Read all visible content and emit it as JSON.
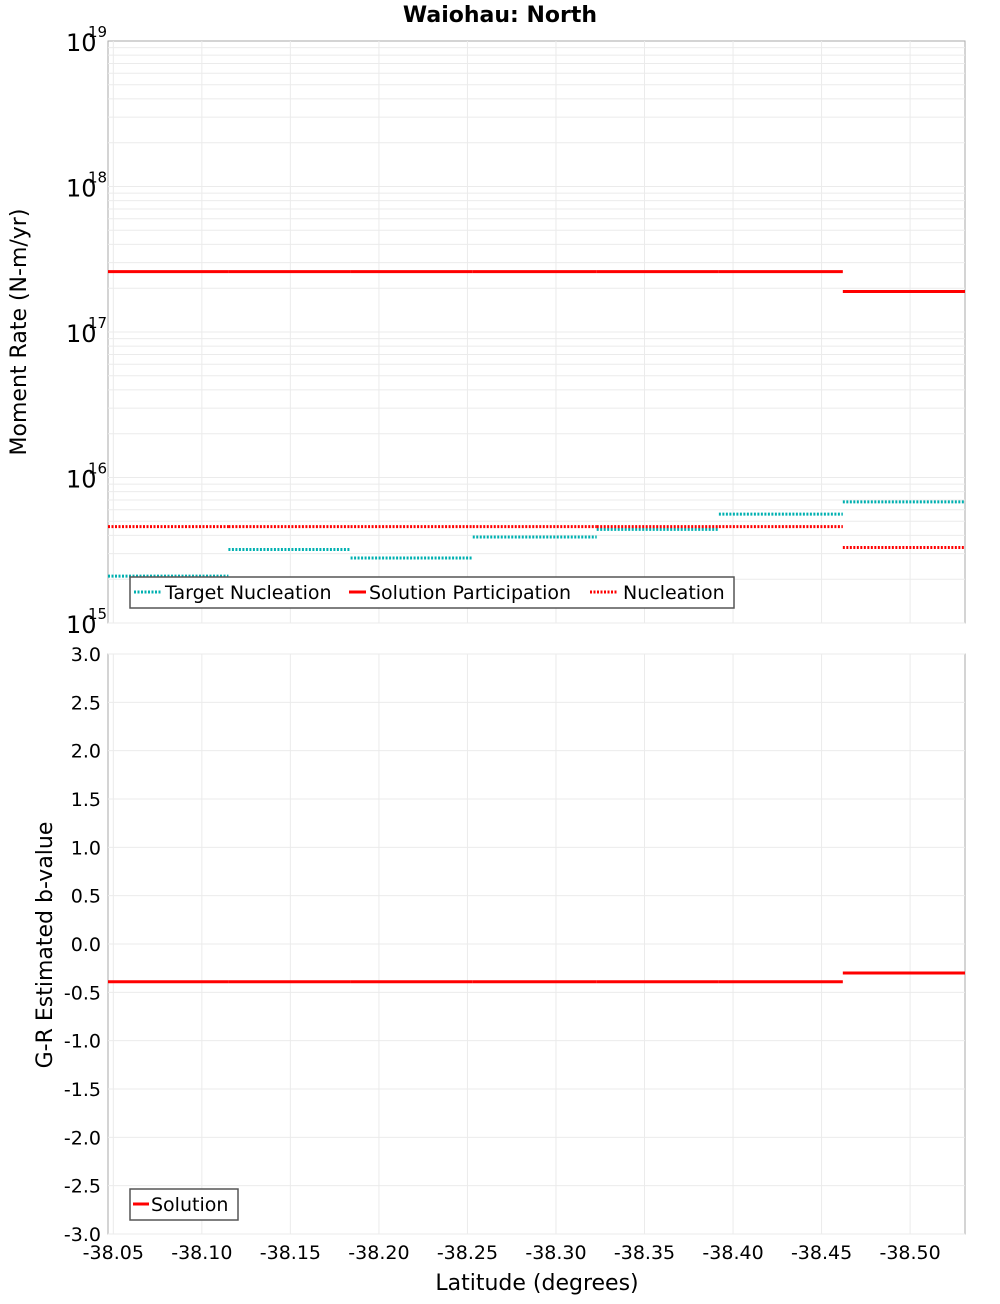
{
  "title": "Waiohau: North",
  "chart_data": [
    {
      "type": "line",
      "subtype": "step",
      "title": "Waiohau: North",
      "xlabel": "Latitude (degrees)",
      "ylabel": "Moment Rate (N-m/yr)",
      "yscale": "log",
      "ylim": [
        1000000000000000.0,
        1e+19
      ],
      "xlim": [
        -38.047,
        -38.531
      ],
      "xticks": [
        "-38.05",
        "-38.10",
        "-38.15",
        "-38.20",
        "-38.25",
        "-38.30",
        "-38.35",
        "-38.40",
        "-38.45",
        "-38.50"
      ],
      "yticks": [
        "10^15",
        "10^16",
        "10^17",
        "10^18",
        "10^19"
      ],
      "grid": true,
      "legend_position": "lower-left",
      "segment_edges_lat": [
        -38.047,
        -38.115,
        -38.184,
        -38.253,
        -38.323,
        -38.392,
        -38.462,
        -38.531
      ],
      "series": [
        {
          "name": "Target Nucleation",
          "color": "#00b0b0",
          "style": "dotted",
          "values": [
            2100000000000000.0,
            3200000000000000.0,
            2800000000000000.0,
            3900000000000000.0,
            4400000000000000.0,
            5600000000000000.0,
            6800000000000000.0
          ]
        },
        {
          "name": "Solution Participation",
          "color": "#ff0000",
          "style": "solid",
          "values": [
            2.6e+17,
            2.6e+17,
            2.6e+17,
            2.6e+17,
            2.6e+17,
            2.6e+17,
            1.9e+17
          ]
        },
        {
          "name": "Nucleation",
          "color": "#ff0000",
          "style": "dotted",
          "values": [
            4600000000000000.0,
            4600000000000000.0,
            4600000000000000.0,
            4600000000000000.0,
            4600000000000000.0,
            4600000000000000.0,
            3300000000000000.0
          ]
        }
      ]
    },
    {
      "type": "line",
      "subtype": "step",
      "title": "",
      "xlabel": "Latitude (degrees)",
      "ylabel": "G-R Estimated b-value",
      "ylim": [
        -3.0,
        3.0
      ],
      "xlim": [
        -38.047,
        -38.531
      ],
      "xticks": [
        "-38.05",
        "-38.10",
        "-38.15",
        "-38.20",
        "-38.25",
        "-38.30",
        "-38.35",
        "-38.40",
        "-38.45",
        "-38.50"
      ],
      "yticks": [
        "3.0",
        "2.5",
        "2.0",
        "1.5",
        "1.0",
        "0.5",
        "0.0",
        "-0.5",
        "-1.0",
        "-1.5",
        "-2.0",
        "-2.5",
        "-3.0"
      ],
      "grid": true,
      "legend_position": "lower-left",
      "segment_edges_lat": [
        -38.047,
        -38.115,
        -38.184,
        -38.253,
        -38.323,
        -38.392,
        -38.462,
        -38.531
      ],
      "series": [
        {
          "name": "Solution",
          "color": "#ff0000",
          "style": "solid",
          "values": [
            -0.39,
            -0.39,
            -0.39,
            -0.39,
            -0.39,
            -0.39,
            -0.3
          ]
        }
      ]
    }
  ],
  "top": {
    "ylabel": "Moment Rate (N-m/yr)",
    "ytick_base": "10",
    "ytick_exps": [
      "19",
      "18",
      "17",
      "16",
      "15"
    ],
    "legend": [
      "Target Nucleation",
      "Solution Participation",
      "Nucleation"
    ]
  },
  "bottom": {
    "ylabel": "G-R Estimated b-value",
    "yticks": [
      "3.0",
      "2.5",
      "2.0",
      "1.5",
      "1.0",
      "0.5",
      "0.0",
      "-0.5",
      "-1.0",
      "-1.5",
      "-2.0",
      "-2.5",
      "-3.0"
    ],
    "legend": [
      "Solution"
    ]
  },
  "xaxis": {
    "label": "Latitude (degrees)",
    "ticks": [
      "-38.05",
      "-38.10",
      "-38.15",
      "-38.20",
      "-38.25",
      "-38.30",
      "-38.35",
      "-38.40",
      "-38.45",
      "-38.50"
    ]
  },
  "colors": {
    "red": "#ff0000",
    "cyan": "#00b0b0",
    "grid": "#ebebeb",
    "frame": "#aaaaaa"
  }
}
